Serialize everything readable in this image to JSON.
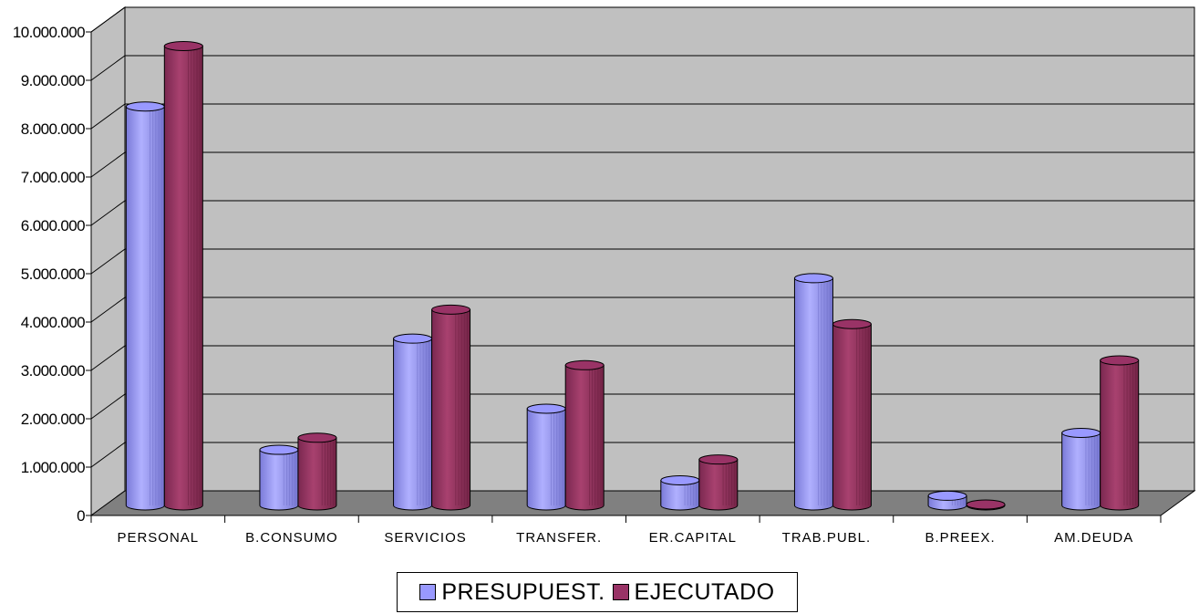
{
  "chart_data": {
    "type": "bar",
    "title": "",
    "xlabel": "",
    "ylabel": "",
    "categories": [
      "PERSONAL",
      "B.CONSUMO",
      "SERVICIOS",
      "TRANSFER.",
      "ER.CAPITAL",
      "TRAB.PUBL.",
      "B.PREEX.",
      "AM.DEUDA"
    ],
    "series": [
      {
        "name": "PRESUPUEST.",
        "color": "#9999ff",
        "values": [
          8250000,
          1150000,
          3450000,
          2000000,
          520000,
          4700000,
          200000,
          1500000
        ]
      },
      {
        "name": "EJECUTADO",
        "color": "#993366",
        "values": [
          9500000,
          1400000,
          4050000,
          2900000,
          950000,
          3750000,
          20000,
          3000000
        ]
      }
    ],
    "ylim": [
      0,
      10000000
    ],
    "yticks": [
      "0",
      "1.000.000",
      "2.000.000",
      "3.000.000",
      "4.000.000",
      "5.000.000",
      "6.000.000",
      "7.000.000",
      "8.000.000",
      "9.000.000",
      "10.000.000"
    ],
    "grid": true,
    "legend_position": "bottom",
    "style": "3d-cylinder"
  },
  "colors": {
    "wall": "#c0c0c0",
    "floor": "#808080"
  }
}
